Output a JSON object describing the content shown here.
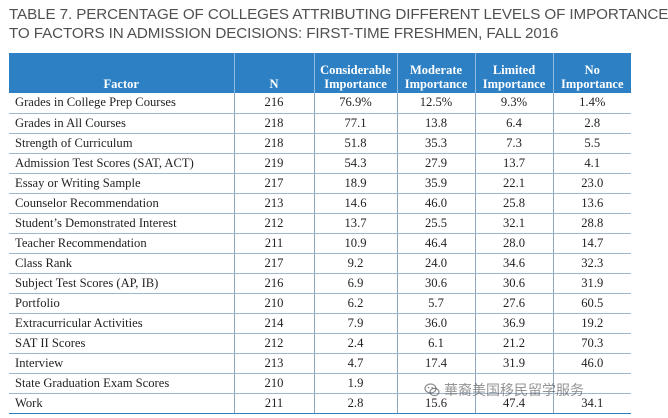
{
  "caption": {
    "line1": "TABLE 7. PERCENTAGE OF COLLEGES ATTRIBUTING DIFFERENT LEVELS OF IMPORTANCE",
    "line2": "TO FACTORS IN ADMISSION DECISIONS: FIRST-TIME FRESHMEN, FALL 2016"
  },
  "colors": {
    "header_background": "#2d80c4",
    "header_text": "#ffffff",
    "row_rule": "#9fb6cf",
    "caption_text": "#4f5052"
  },
  "table": {
    "headers": [
      {
        "line1": "Factor",
        "line2": ""
      },
      {
        "line1": "N",
        "line2": ""
      },
      {
        "line1": "Considerable",
        "line2": "Importance"
      },
      {
        "line1": "Moderate",
        "line2": "Importance"
      },
      {
        "line1": "Limited",
        "line2": "Importance"
      },
      {
        "line1": "No",
        "line2": "Importance"
      }
    ],
    "rows": [
      [
        "Grades in College Prep Courses",
        "216",
        "76.9%",
        "12.5%",
        "9.3%",
        "1.4%"
      ],
      [
        "Grades in All Courses",
        "218",
        "77.1",
        "13.8",
        "6.4",
        "2.8"
      ],
      [
        "Strength of Curriculum",
        "218",
        "51.8",
        "35.3",
        "7.3",
        "5.5"
      ],
      [
        "Admission Test Scores (SAT, ACT)",
        "219",
        "54.3",
        "27.9",
        "13.7",
        "4.1"
      ],
      [
        "Essay or Writing Sample",
        "217",
        "18.9",
        "35.9",
        "22.1",
        "23.0"
      ],
      [
        "Counselor Recommendation",
        "213",
        "14.6",
        "46.0",
        "25.8",
        "13.6"
      ],
      [
        "Student’s Demonstrated Interest",
        "212",
        "13.7",
        "25.5",
        "32.1",
        "28.8"
      ],
      [
        "Teacher Recommendation",
        "211",
        "10.9",
        "46.4",
        "28.0",
        "14.7"
      ],
      [
        "Class Rank",
        "217",
        "9.2",
        "24.0",
        "34.6",
        "32.3"
      ],
      [
        "Subject Test Scores (AP, IB)",
        "216",
        "6.9",
        "30.6",
        "30.6",
        "31.9"
      ],
      [
        "Portfolio",
        "210",
        "6.2",
        "5.7",
        "27.6",
        "60.5"
      ],
      [
        "Extracurricular Activities",
        "214",
        "7.9",
        "36.0",
        "36.9",
        "19.2"
      ],
      [
        "SAT II Scores",
        "212",
        "2.4",
        "6.1",
        "21.2",
        "70.3"
      ],
      [
        "Interview",
        "213",
        "4.7",
        "17.4",
        "31.9",
        "46.0"
      ],
      [
        "State Graduation Exam Scores",
        "210",
        "1.9",
        "",
        "",
        ""
      ],
      [
        "Work",
        "211",
        "2.8",
        "15.6",
        "47.4",
        "34.1"
      ]
    ]
  },
  "watermark": {
    "icon": "wechat-icon",
    "text": "華裔美国移民留学服务"
  }
}
